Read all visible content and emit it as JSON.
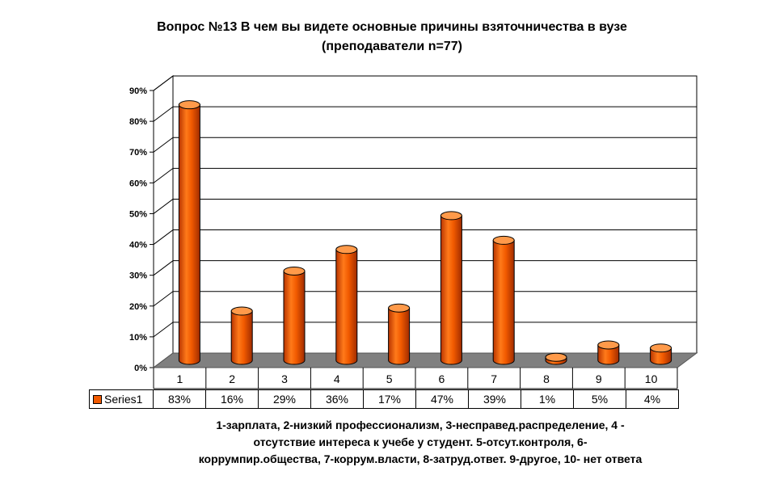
{
  "chart_data": {
    "type": "bar",
    "title": "Вопрос №13 В чем вы видете основные причины взяточничества в вузе",
    "subtitle": "(преподаватели n=77)",
    "categories": [
      "1",
      "2",
      "3",
      "4",
      "5",
      "6",
      "7",
      "8",
      "9",
      "10"
    ],
    "series": [
      {
        "name": "Series1",
        "values": [
          83,
          16,
          29,
          36,
          17,
          47,
          39,
          1,
          5,
          4
        ],
        "value_labels": [
          "83%",
          "16%",
          "29%",
          "36%",
          "17%",
          "47%",
          "39%",
          "1%",
          "5%",
          "4%"
        ]
      }
    ],
    "y_ticks": [
      "0%",
      "10%",
      "20%",
      "30%",
      "40%",
      "50%",
      "60%",
      "70%",
      "80%",
      "90%"
    ],
    "ylim": [
      0,
      90
    ],
    "grid": true,
    "legend": "data table, bottom-left",
    "bar_color": "#f15a00"
  },
  "footnote": [
    "1-зарплата, 2-низкий профессионализм, 3-несправед.распределение, 4 -",
    "отсутствие интереса к учебе у студент. 5-отсут.контроля, 6-",
    "коррумпир.общества, 7-коррум.власти, 8-затруд.ответ. 9-другое, 10- нет ответа"
  ]
}
